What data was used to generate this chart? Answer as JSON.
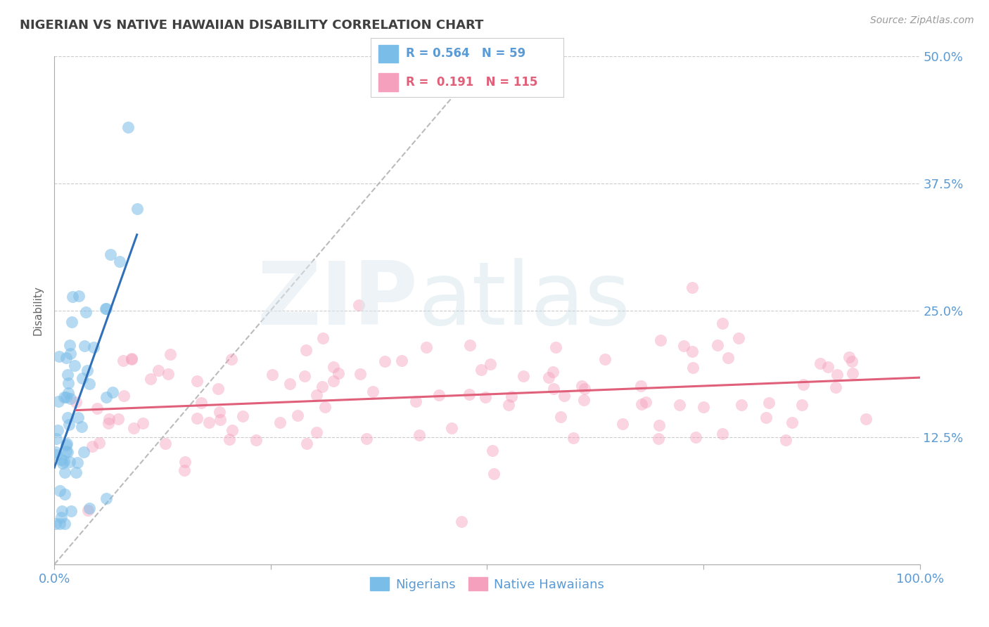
{
  "title": "NIGERIAN VS NATIVE HAWAIIAN DISABILITY CORRELATION CHART",
  "source": "Source: ZipAtlas.com",
  "xlabel": "",
  "ylabel": "Disability",
  "xlim": [
    0.0,
    1.0
  ],
  "ylim": [
    0.0,
    0.5
  ],
  "xticks": [
    0.0,
    0.25,
    0.5,
    0.75,
    1.0
  ],
  "xticklabels": [
    "0.0%",
    "",
    "",
    "",
    "100.0%"
  ],
  "yticks": [
    0.0,
    0.125,
    0.25,
    0.375,
    0.5
  ],
  "yticklabels": [
    "",
    "12.5%",
    "25.0%",
    "37.5%",
    "50.0%"
  ],
  "legend_label1": "Nigerians",
  "legend_label2": "Native Hawaiians",
  "R1": 0.564,
  "N1": 59,
  "R2": 0.191,
  "N2": 115,
  "color1": "#7abde8",
  "color2": "#f5a0bc",
  "line_color1": "#3070b8",
  "line_color2": "#e0607a",
  "background_color": "#ffffff",
  "title_color": "#404040",
  "axis_color": "#5b9bd5",
  "legend_text_color1": "#5b9bd5",
  "legend_text_color2": "#e0607a"
}
